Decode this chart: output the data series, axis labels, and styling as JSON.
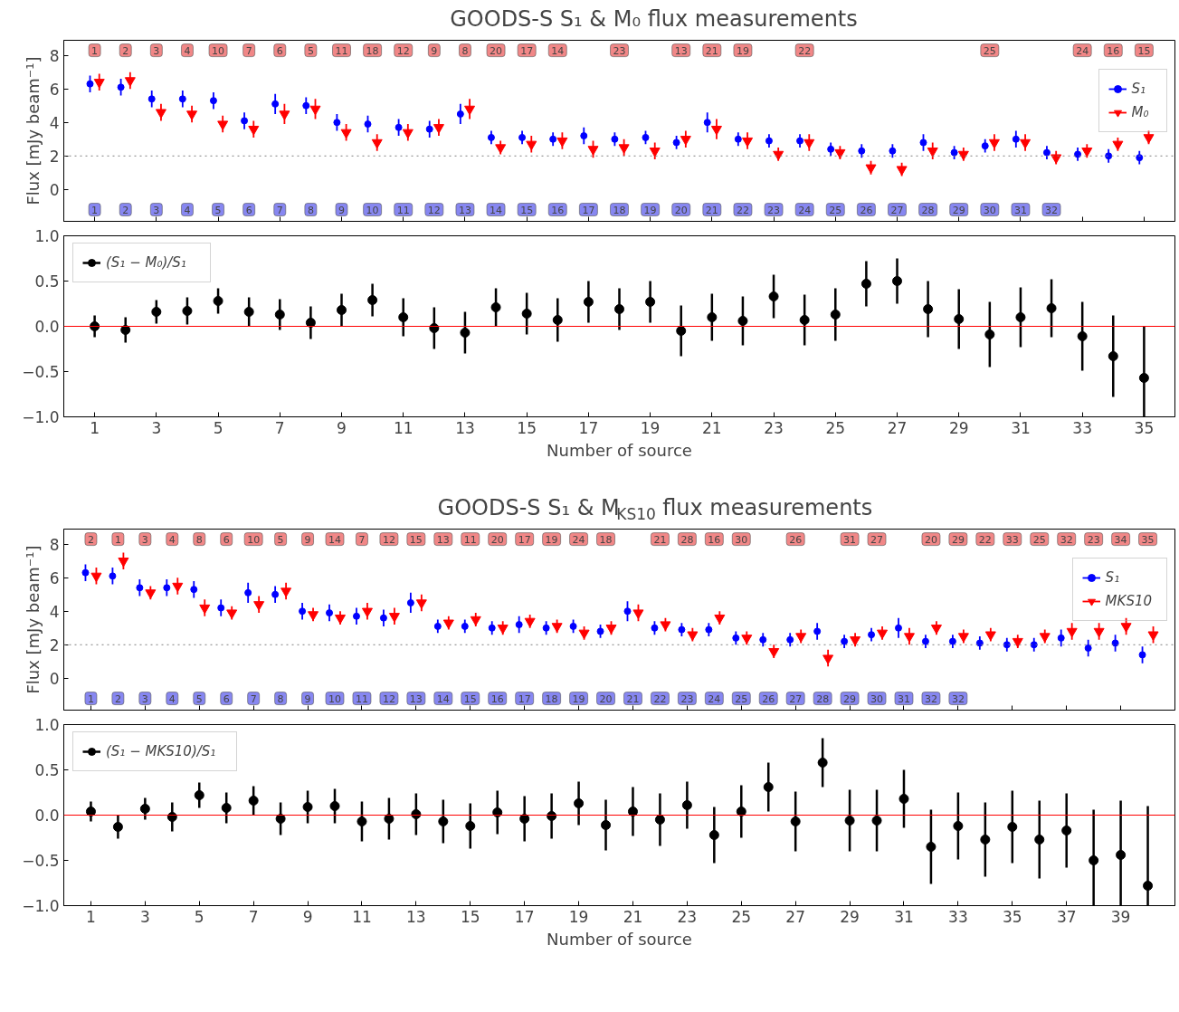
{
  "chart_data": [
    {
      "type": "scatter",
      "title": "GOODS-S   S₁ & M₀ flux measurements",
      "ylabel": "Flux [mJy beam⁻¹]",
      "xlim": [
        0,
        36
      ],
      "ylim": [
        -1.9,
        8.9
      ],
      "xticks": [
        1,
        3,
        5,
        7,
        9,
        11,
        13,
        15,
        17,
        19,
        21,
        23,
        25,
        27,
        29,
        31,
        33,
        35
      ],
      "yticks": [
        0,
        2,
        4,
        6,
        8
      ],
      "tick_labels": "y",
      "grid": false,
      "legend": "top right",
      "series": [
        {
          "name": "S₁",
          "color": "#0000ff",
          "marker": "circle",
          "x": [
            0.85,
            1.85,
            2.85,
            3.85,
            4.85,
            5.85,
            6.85,
            7.85,
            8.85,
            9.85,
            10.85,
            11.85,
            12.85,
            13.85,
            14.85,
            15.85,
            16.85,
            17.85,
            18.85,
            19.85,
            20.85,
            21.85,
            22.85,
            23.85,
            24.85,
            25.85,
            26.85,
            27.85,
            28.85,
            29.85,
            30.85,
            31.85,
            32.85,
            33.85,
            34.85
          ],
          "values": [
            6.3,
            6.1,
            5.4,
            5.4,
            5.3,
            4.1,
            5.1,
            5.0,
            4.0,
            3.9,
            3.7,
            3.6,
            4.5,
            3.1,
            3.1,
            3.0,
            3.2,
            3.0,
            3.1,
            2.8,
            4.0,
            3.0,
            2.9,
            2.9,
            2.4,
            2.3,
            2.3,
            2.8,
            2.2,
            2.6,
            3.0,
            2.2,
            2.1,
            2.0,
            1.9
          ],
          "errors": [
            0.5,
            0.5,
            0.5,
            0.5,
            0.5,
            0.5,
            0.6,
            0.5,
            0.5,
            0.5,
            0.5,
            0.5,
            0.6,
            0.4,
            0.4,
            0.4,
            0.5,
            0.4,
            0.4,
            0.4,
            0.6,
            0.4,
            0.4,
            0.4,
            0.4,
            0.4,
            0.4,
            0.5,
            0.4,
            0.4,
            0.5,
            0.4,
            0.4,
            0.4,
            0.4
          ]
        },
        {
          "name": "M₀",
          "color": "#ff0000",
          "marker": "triangle",
          "x": [
            1.15,
            2.15,
            3.15,
            4.15,
            5.15,
            6.15,
            7.15,
            8.15,
            9.15,
            10.15,
            11.15,
            12.15,
            13.15,
            14.15,
            15.15,
            16.15,
            17.15,
            18.15,
            19.15,
            20.15,
            21.15,
            22.15,
            23.15,
            24.15,
            25.15,
            26.15,
            27.15,
            28.15,
            29.15,
            30.15,
            31.15,
            32.15,
            33.15,
            34.15,
            35.15
          ],
          "values": [
            6.4,
            6.5,
            4.6,
            4.5,
            3.9,
            3.6,
            4.5,
            4.8,
            3.4,
            2.8,
            3.4,
            3.7,
            4.8,
            2.5,
            2.7,
            2.9,
            2.4,
            2.5,
            2.3,
            3.0,
            3.6,
            2.9,
            2.1,
            2.8,
            2.2,
            1.3,
            1.2,
            2.3,
            2.1,
            2.8,
            2.8,
            1.9,
            2.3,
            2.7,
            3.1
          ],
          "errors": [
            0.5,
            0.5,
            0.5,
            0.5,
            0.5,
            0.5,
            0.6,
            0.6,
            0.5,
            0.5,
            0.5,
            0.5,
            0.6,
            0.4,
            0.5,
            0.5,
            0.5,
            0.5,
            0.5,
            0.5,
            0.6,
            0.5,
            0.4,
            0.5,
            0.4,
            0.4,
            0.4,
            0.5,
            0.4,
            0.5,
            0.5,
            0.4,
            0.4,
            0.4,
            0.4
          ]
        }
      ],
      "ref_lines": [
        {
          "axis": "y",
          "value": 2,
          "color": "#808080",
          "line_style": "dotted"
        }
      ],
      "annotations": [
        {
          "text": "1",
          "x": 1,
          "y": 8.3
        },
        {
          "text": "2",
          "x": 2,
          "y": 8.3
        },
        {
          "text": "3",
          "x": 3,
          "y": 8.3
        },
        {
          "text": "4",
          "x": 4,
          "y": 8.3
        },
        {
          "text": "10",
          "x": 5,
          "y": 8.3
        },
        {
          "text": "7",
          "x": 6,
          "y": 8.3
        },
        {
          "text": "6",
          "x": 7,
          "y": 8.3
        },
        {
          "text": "5",
          "x": 8,
          "y": 8.3
        },
        {
          "text": "11",
          "x": 9,
          "y": 8.3
        },
        {
          "text": "18",
          "x": 10,
          "y": 8.3
        },
        {
          "text": "12",
          "x": 11,
          "y": 8.3
        },
        {
          "text": "9",
          "x": 12,
          "y": 8.3
        },
        {
          "text": "8",
          "x": 13,
          "y": 8.3
        },
        {
          "text": "20",
          "x": 14,
          "y": 8.3
        },
        {
          "text": "17",
          "x": 15,
          "y": 8.3
        },
        {
          "text": "14",
          "x": 16,
          "y": 8.3
        },
        {
          "text": "23",
          "x": 18,
          "y": 8.3
        },
        {
          "text": "13",
          "x": 20,
          "y": 8.3
        },
        {
          "text": "21",
          "x": 21,
          "y": 8.3
        },
        {
          "text": "19",
          "x": 22,
          "y": 8.3
        },
        {
          "text": "22",
          "x": 24,
          "y": 8.3
        },
        {
          "text": "25",
          "x": 30,
          "y": 8.3
        },
        {
          "text": "24",
          "x": 33,
          "y": 8.3
        },
        {
          "text": "16",
          "x": 34,
          "y": 8.3
        },
        {
          "text": "15",
          "x": 35,
          "y": 8.3
        },
        {
          "text": "1",
          "x": 1,
          "y": -1.2
        },
        {
          "text": "2",
          "x": 2,
          "y": -1.2
        },
        {
          "text": "3",
          "x": 3,
          "y": -1.2
        },
        {
          "text": "4",
          "x": 4,
          "y": -1.2
        },
        {
          "text": "5",
          "x": 5,
          "y": -1.2
        },
        {
          "text": "6",
          "x": 6,
          "y": -1.2
        },
        {
          "text": "7",
          "x": 7,
          "y": -1.2
        },
        {
          "text": "8",
          "x": 8,
          "y": -1.2
        },
        {
          "text": "9",
          "x": 9,
          "y": -1.2
        },
        {
          "text": "10",
          "x": 10,
          "y": -1.2
        },
        {
          "text": "11",
          "x": 11,
          "y": -1.2
        },
        {
          "text": "12",
          "x": 12,
          "y": -1.2
        },
        {
          "text": "13",
          "x": 13,
          "y": -1.2
        },
        {
          "text": "14",
          "x": 14,
          "y": -1.2
        },
        {
          "text": "15",
          "x": 15,
          "y": -1.2
        },
        {
          "text": "16",
          "x": 16,
          "y": -1.2
        },
        {
          "text": "17",
          "x": 17,
          "y": -1.2
        },
        {
          "text": "18",
          "x": 18,
          "y": -1.2
        },
        {
          "text": "19",
          "x": 19,
          "y": -1.2
        },
        {
          "text": "20",
          "x": 20,
          "y": -1.2
        },
        {
          "text": "21",
          "x": 21,
          "y": -1.2
        },
        {
          "text": "22",
          "x": 22,
          "y": -1.2
        },
        {
          "text": "23",
          "x": 23,
          "y": -1.2
        },
        {
          "text": "24",
          "x": 24,
          "y": -1.2
        },
        {
          "text": "25",
          "x": 25,
          "y": -1.2
        },
        {
          "text": "26",
          "x": 26,
          "y": -1.2
        },
        {
          "text": "27",
          "x": 27,
          "y": -1.2
        },
        {
          "text": "28",
          "x": 28,
          "y": -1.2
        },
        {
          "text": "29",
          "x": 29,
          "y": -1.2
        },
        {
          "text": "30",
          "x": 30,
          "y": -1.2
        },
        {
          "text": "31",
          "x": 31,
          "y": -1.2
        },
        {
          "text": "32",
          "x": 32,
          "y": -1.2
        }
      ]
    },
    {
      "type": "scatter",
      "xlabel": "Number of source",
      "xlim": [
        0,
        36
      ],
      "ylim": [
        -1,
        1
      ],
      "xticks": [
        1,
        3,
        5,
        7,
        9,
        11,
        13,
        15,
        17,
        19,
        21,
        23,
        25,
        27,
        29,
        31,
        33,
        35
      ],
      "yticks": [
        {
          "value": -1,
          "label": "−1.0"
        },
        {
          "value": -0.5,
          "label": "−0.5"
        },
        {
          "value": 0,
          "label": "0.0"
        },
        {
          "value": 0.5,
          "label": "0.5"
        },
        {
          "value": 1,
          "label": "1.0"
        }
      ],
      "grid": false,
      "legend": "top left",
      "marker": "circle",
      "x": [
        1,
        2,
        3,
        4,
        5,
        6,
        7,
        8,
        9,
        10,
        11,
        12,
        13,
        14,
        15,
        16,
        17,
        18,
        19,
        20,
        21,
        22,
        23,
        24,
        25,
        26,
        27,
        28,
        29,
        30,
        31,
        32,
        33,
        34,
        35
      ],
      "series": [
        {
          "name": "(S₁ − M₀)/S₁",
          "color": "#000000",
          "values": [
            0.0,
            -0.04,
            0.16,
            0.17,
            0.28,
            0.16,
            0.13,
            0.04,
            0.18,
            0.29,
            0.1,
            -0.02,
            -0.07,
            0.21,
            0.14,
            0.07,
            0.27,
            0.19,
            0.27,
            -0.05,
            0.1,
            0.06,
            0.33,
            0.07,
            0.13,
            0.47,
            0.5,
            0.19,
            0.08,
            -0.09,
            0.1,
            0.2,
            -0.11,
            -0.33,
            -0.57
          ],
          "errors": [
            0.12,
            0.14,
            0.13,
            0.15,
            0.14,
            0.16,
            0.17,
            0.18,
            0.18,
            0.18,
            0.21,
            0.23,
            0.23,
            0.21,
            0.23,
            0.24,
            0.23,
            0.23,
            0.23,
            0.28,
            0.26,
            0.27,
            0.24,
            0.28,
            0.29,
            0.25,
            0.25,
            0.31,
            0.33,
            0.36,
            0.33,
            0.32,
            0.38,
            0.45,
            [
              -1.0,
              0.0
            ]
          ]
        }
      ],
      "ref_lines": [
        {
          "axis": "y",
          "value": 0,
          "color": "#ff0000",
          "line_style": "solid"
        }
      ]
    },
    {
      "type": "scatter",
      "title": "GOODS-S   S₁ & M$_{KS10}$ flux measurements",
      "ylabel": "Flux [mJy beam⁻¹]",
      "xlim": [
        0,
        41
      ],
      "ylim": [
        -1.9,
        8.9
      ],
      "xticks": [
        1,
        3,
        5,
        7,
        9,
        11,
        13,
        15,
        17,
        19,
        21,
        23,
        25,
        27,
        29,
        31,
        33,
        35,
        37,
        39
      ],
      "yticks": [
        0,
        2,
        4,
        6,
        8
      ],
      "tick_labels": "y",
      "grid": false,
      "legend": "top right",
      "series": [
        {
          "name": "S₁",
          "color": "#0000ff",
          "marker": "circle",
          "x": [
            0.8,
            1.8,
            2.8,
            3.8,
            4.8,
            5.8,
            6.8,
            7.8,
            8.8,
            9.8,
            10.8,
            11.8,
            12.8,
            13.8,
            14.8,
            15.8,
            16.8,
            17.8,
            18.8,
            19.8,
            20.8,
            21.8,
            22.8,
            23.8,
            24.8,
            25.8,
            26.8,
            27.8,
            28.8,
            29.8,
            30.8,
            31.8,
            32.8,
            33.8,
            34.8,
            35.8,
            36.8,
            37.8,
            38.8,
            39.8
          ],
          "values": [
            6.3,
            6.1,
            5.4,
            5.4,
            5.3,
            4.2,
            5.1,
            5.0,
            4.0,
            3.9,
            3.7,
            3.6,
            4.5,
            3.1,
            3.1,
            3.0,
            3.2,
            3.0,
            3.1,
            2.8,
            4.0,
            3.0,
            2.9,
            2.9,
            2.4,
            2.3,
            2.3,
            2.8,
            2.2,
            2.6,
            3.0,
            2.2,
            2.2,
            2.1,
            2.0,
            2.0,
            2.4,
            1.8,
            2.1,
            1.4
          ],
          "errors": [
            0.5,
            0.5,
            0.5,
            0.5,
            0.5,
            0.5,
            0.6,
            0.5,
            0.5,
            0.5,
            0.5,
            0.5,
            0.6,
            0.4,
            0.4,
            0.4,
            0.5,
            0.4,
            0.4,
            0.4,
            0.6,
            0.4,
            0.4,
            0.4,
            0.4,
            0.4,
            0.4,
            0.5,
            0.4,
            0.4,
            0.6,
            0.4,
            0.4,
            0.4,
            0.4,
            0.4,
            0.5,
            0.5,
            0.5,
            0.5
          ]
        },
        {
          "name": "MKS10",
          "color": "#ff0000",
          "marker": "triangle",
          "x": [
            1.2,
            2.2,
            3.2,
            4.2,
            5.2,
            6.2,
            7.2,
            8.2,
            9.2,
            10.2,
            11.2,
            12.2,
            13.2,
            14.2,
            15.2,
            16.2,
            17.2,
            18.2,
            19.2,
            20.2,
            21.2,
            22.2,
            23.2,
            24.2,
            25.2,
            26.2,
            27.2,
            28.2,
            29.2,
            30.2,
            31.2,
            32.2,
            33.2,
            34.2,
            35.2,
            36.2,
            37.2,
            38.2,
            39.2,
            40.2
          ],
          "values": [
            6.1,
            7.0,
            5.1,
            5.5,
            4.2,
            3.9,
            4.4,
            5.2,
            3.8,
            3.6,
            4.0,
            3.7,
            4.5,
            3.3,
            3.5,
            3.0,
            3.4,
            3.1,
            2.7,
            3.0,
            3.9,
            3.2,
            2.6,
            3.6,
            2.4,
            1.6,
            2.5,
            1.2,
            2.3,
            2.7,
            2.5,
            3.0,
            2.5,
            2.6,
            2.2,
            2.5,
            2.8,
            2.8,
            3.1,
            2.6
          ],
          "errors": [
            0.5,
            0.5,
            0.4,
            0.5,
            0.5,
            0.4,
            0.5,
            0.5,
            0.4,
            0.4,
            0.5,
            0.5,
            0.5,
            0.4,
            0.4,
            0.4,
            0.4,
            0.4,
            0.4,
            0.4,
            0.5,
            0.4,
            0.4,
            0.4,
            0.4,
            0.4,
            0.4,
            0.5,
            0.4,
            0.4,
            0.5,
            0.4,
            0.4,
            0.4,
            0.4,
            0.4,
            0.5,
            0.5,
            0.5,
            0.5
          ]
        }
      ],
      "ref_lines": [
        {
          "axis": "y",
          "value": 2,
          "color": "#808080",
          "line_style": "dotted"
        }
      ],
      "annotations": [
        {
          "text": "2",
          "x": 1,
          "y": 8.3
        },
        {
          "text": "1",
          "x": 2,
          "y": 8.3
        },
        {
          "text": "3",
          "x": 3,
          "y": 8.3
        },
        {
          "text": "4",
          "x": 4,
          "y": 8.3
        },
        {
          "text": "8",
          "x": 5,
          "y": 8.3
        },
        {
          "text": "6",
          "x": 6,
          "y": 8.3
        },
        {
          "text": "10",
          "x": 7,
          "y": 8.3
        },
        {
          "text": "5",
          "x": 8,
          "y": 8.3
        },
        {
          "text": "9",
          "x": 9,
          "y": 8.3
        },
        {
          "text": "14",
          "x": 10,
          "y": 8.3
        },
        {
          "text": "7",
          "x": 11,
          "y": 8.3
        },
        {
          "text": "12",
          "x": 12,
          "y": 8.3
        },
        {
          "text": "15",
          "x": 13,
          "y": 8.3
        },
        {
          "text": "13",
          "x": 14,
          "y": 8.3
        },
        {
          "text": "11",
          "x": 15,
          "y": 8.3
        },
        {
          "text": "20",
          "x": 16,
          "y": 8.3
        },
        {
          "text": "17",
          "x": 17,
          "y": 8.3
        },
        {
          "text": "19",
          "x": 18,
          "y": 8.3
        },
        {
          "text": "24",
          "x": 19,
          "y": 8.3
        },
        {
          "text": "18",
          "x": 20,
          "y": 8.3
        },
        {
          "text": "21",
          "x": 22,
          "y": 8.3
        },
        {
          "text": "28",
          "x": 23,
          "y": 8.3
        },
        {
          "text": "16",
          "x": 24,
          "y": 8.3
        },
        {
          "text": "30",
          "x": 25,
          "y": 8.3
        },
        {
          "text": "26",
          "x": 27,
          "y": 8.3
        },
        {
          "text": "31",
          "x": 29,
          "y": 8.3
        },
        {
          "text": "27",
          "x": 30,
          "y": 8.3
        },
        {
          "text": "20",
          "x": 32,
          "y": 8.3
        },
        {
          "text": "29",
          "x": 33,
          "y": 8.3
        },
        {
          "text": "22",
          "x": 34,
          "y": 8.3
        },
        {
          "text": "33",
          "x": 35,
          "y": 8.3
        },
        {
          "text": "25",
          "x": 36,
          "y": 8.3
        },
        {
          "text": "32",
          "x": 37,
          "y": 8.3
        },
        {
          "text": "23",
          "x": 38,
          "y": 8.3
        },
        {
          "text": "34",
          "x": 39,
          "y": 8.3
        },
        {
          "text": "35",
          "x": 40,
          "y": 8.3
        },
        {
          "text": "1",
          "x": 1,
          "y": -1.2
        },
        {
          "text": "2",
          "x": 2,
          "y": -1.2
        },
        {
          "text": "3",
          "x": 3,
          "y": -1.2
        },
        {
          "text": "4",
          "x": 4,
          "y": -1.2
        },
        {
          "text": "5",
          "x": 5,
          "y": -1.2
        },
        {
          "text": "6",
          "x": 6,
          "y": -1.2
        },
        {
          "text": "7",
          "x": 7,
          "y": -1.2
        },
        {
          "text": "8",
          "x": 8,
          "y": -1.2
        },
        {
          "text": "9",
          "x": 9,
          "y": -1.2
        },
        {
          "text": "10",
          "x": 10,
          "y": -1.2
        },
        {
          "text": "11",
          "x": 11,
          "y": -1.2
        },
        {
          "text": "12",
          "x": 12,
          "y": -1.2
        },
        {
          "text": "13",
          "x": 13,
          "y": -1.2
        },
        {
          "text": "14",
          "x": 14,
          "y": -1.2
        },
        {
          "text": "15",
          "x": 15,
          "y": -1.2
        },
        {
          "text": "16",
          "x": 16,
          "y": -1.2
        },
        {
          "text": "17",
          "x": 17,
          "y": -1.2
        },
        {
          "text": "18",
          "x": 18,
          "y": -1.2
        },
        {
          "text": "19",
          "x": 19,
          "y": -1.2
        },
        {
          "text": "20",
          "x": 20,
          "y": -1.2
        },
        {
          "text": "21",
          "x": 21,
          "y": -1.2
        },
        {
          "text": "22",
          "x": 22,
          "y": -1.2
        },
        {
          "text": "23",
          "x": 23,
          "y": -1.2
        },
        {
          "text": "24",
          "x": 24,
          "y": -1.2
        },
        {
          "text": "25",
          "x": 25,
          "y": -1.2
        },
        {
          "text": "26",
          "x": 26,
          "y": -1.2
        },
        {
          "text": "27",
          "x": 27,
          "y": -1.2
        },
        {
          "text": "28",
          "x": 28,
          "y": -1.2
        },
        {
          "text": "29",
          "x": 29,
          "y": -1.2
        },
        {
          "text": "30",
          "x": 30,
          "y": -1.2
        },
        {
          "text": "31",
          "x": 31,
          "y": -1.2
        },
        {
          "text": "32",
          "x": 32,
          "y": -1.2
        },
        {
          "text": "32",
          "x": 33,
          "y": -1.2
        }
      ]
    },
    {
      "type": "scatter",
      "xlabel": "Number of source",
      "xlim": [
        0,
        41
      ],
      "ylim": [
        -1,
        1
      ],
      "xticks": [
        1,
        3,
        5,
        7,
        9,
        11,
        13,
        15,
        17,
        19,
        21,
        23,
        25,
        27,
        29,
        31,
        33,
        35,
        37,
        39
      ],
      "yticks": [
        {
          "value": -1,
          "label": "−1.0"
        },
        {
          "value": -0.5,
          "label": "−0.5"
        },
        {
          "value": 0,
          "label": "0.0"
        },
        {
          "value": 0.5,
          "label": "0.5"
        },
        {
          "value": 1,
          "label": "1.0"
        }
      ],
      "grid": false,
      "legend": "top left",
      "marker": "circle",
      "x": [
        1,
        2,
        3,
        4,
        5,
        6,
        7,
        8,
        9,
        10,
        11,
        12,
        13,
        14,
        15,
        16,
        17,
        18,
        19,
        20,
        21,
        22,
        23,
        24,
        25,
        26,
        27,
        28,
        29,
        30,
        31,
        32,
        33,
        34,
        35,
        36,
        37,
        38,
        39,
        40
      ],
      "series": [
        {
          "name": "(S₁ − MKS10)/S₁",
          "color": "#000000",
          "values": [
            0.04,
            -0.13,
            0.07,
            -0.02,
            0.22,
            0.08,
            0.16,
            -0.04,
            0.09,
            0.1,
            -0.07,
            -0.04,
            0.01,
            -0.07,
            -0.12,
            0.03,
            -0.04,
            -0.01,
            0.13,
            -0.11,
            0.04,
            -0.05,
            0.11,
            -0.22,
            0.04,
            0.31,
            -0.07,
            0.58,
            -0.06,
            -0.06,
            0.18,
            -0.35,
            -0.12,
            -0.27,
            -0.13,
            -0.27,
            -0.17,
            -0.5,
            -0.44,
            -0.78
          ],
          "errors": [
            0.11,
            0.13,
            0.12,
            0.16,
            0.14,
            0.17,
            0.16,
            0.18,
            0.18,
            0.19,
            0.22,
            0.23,
            0.23,
            0.24,
            0.25,
            0.24,
            0.25,
            0.25,
            0.24,
            0.28,
            0.27,
            0.29,
            0.26,
            0.31,
            0.29,
            0.27,
            0.33,
            0.27,
            0.34,
            0.34,
            0.32,
            0.41,
            0.37,
            0.41,
            0.4,
            0.43,
            0.41,
            [
              -1.0,
              0.06
            ],
            [
              -1.0,
              0.16
            ],
            [
              -1.0,
              0.1
            ]
          ]
        }
      ],
      "ref_lines": [
        {
          "axis": "y",
          "value": 0,
          "color": "#ff0000",
          "line_style": "solid"
        }
      ]
    }
  ]
}
